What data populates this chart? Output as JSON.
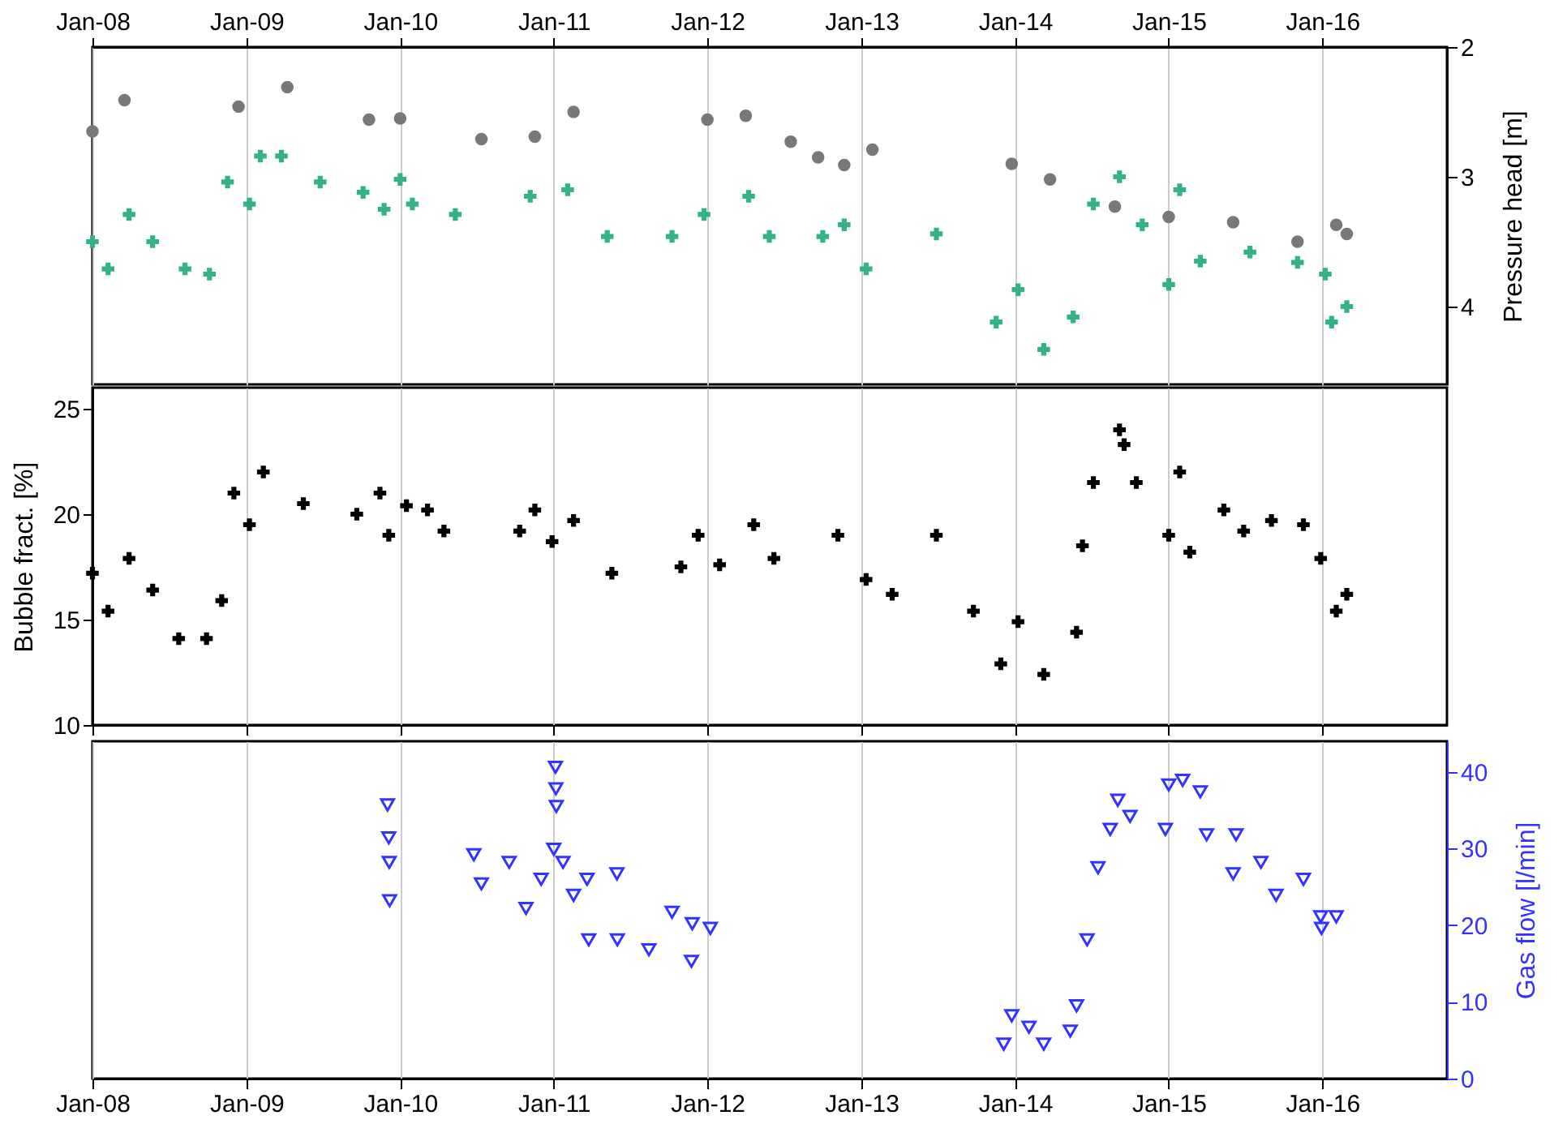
{
  "chart_data": [
    {
      "type": "scatter",
      "y2label": "Pressure head [m]",
      "xlim": [
        "2008-01-01",
        "2016-10-23"
      ],
      "xticks": [
        {
          "value": "2008-01-01",
          "label": "Jan-08"
        },
        {
          "value": "2009-01-01",
          "label": "Jan-09"
        },
        {
          "value": "2010-01-01",
          "label": "Jan-10"
        },
        {
          "value": "2011-01-01",
          "label": "Jan-11"
        },
        {
          "value": "2012-01-01",
          "label": "Jan-12"
        },
        {
          "value": "2013-01-01",
          "label": "Jan-13"
        },
        {
          "value": "2014-01-01",
          "label": "Jan-14"
        },
        {
          "value": "2015-01-01",
          "label": "Jan-15"
        },
        {
          "value": "2016-01-01",
          "label": "Jan-16"
        }
      ],
      "y2lim": [
        4.6,
        2
      ],
      "y2ticks": [
        2,
        3,
        4
      ],
      "grid": "x",
      "series": [
        {
          "color": "#787878",
          "axis": "y2",
          "marker": "circle",
          "x": [
            "2008-01-01",
            "2008-03-17",
            "2008-12-13",
            "2009-04-08",
            "2009-10-19",
            "2010-01-01",
            "2010-07-13",
            "2010-11-17",
            "2011-02-17",
            "2012-01-01",
            "2012-04-01",
            "2012-07-17",
            "2012-09-20",
            "2012-11-21",
            "2013-01-27",
            "2013-12-24",
            "2014-03-25",
            "2014-08-26",
            "2015-01-01",
            "2015-06-03",
            "2015-11-03",
            "2016-02-03",
            "2016-02-28"
          ],
          "values": [
            2.65,
            2.41,
            2.46,
            2.31,
            2.56,
            2.55,
            2.71,
            2.69,
            2.5,
            2.56,
            2.53,
            2.73,
            2.85,
            2.91,
            2.79,
            2.9,
            3.02,
            3.23,
            3.31,
            3.35,
            3.5,
            3.37,
            3.44
          ]
        },
        {
          "color": "#33b383",
          "axis": "y2",
          "marker": "cross",
          "x": [
            "2008-01-01",
            "2008-02-07",
            "2008-03-28",
            "2008-05-23",
            "2008-08-08",
            "2008-10-05",
            "2008-11-17",
            "2009-01-08",
            "2009-02-03",
            "2009-03-25",
            "2009-06-25",
            "2009-10-05",
            "2009-11-24",
            "2010-01-01",
            "2010-01-30",
            "2010-05-12",
            "2010-11-06",
            "2011-02-03",
            "2011-05-08",
            "2011-10-09",
            "2011-12-24",
            "2012-04-08",
            "2012-05-27",
            "2012-10-01",
            "2012-11-21",
            "2013-01-12",
            "2013-06-28",
            "2013-11-17",
            "2014-01-08",
            "2014-03-10",
            "2014-05-19",
            "2014-07-06",
            "2014-09-06",
            "2014-10-30",
            "2015-01-01",
            "2015-01-27",
            "2015-03-17",
            "2015-07-13",
            "2015-11-03",
            "2016-01-08",
            "2016-01-23",
            "2016-02-28"
          ],
          "values": [
            3.5,
            3.71,
            3.29,
            3.5,
            3.71,
            3.75,
            3.04,
            3.21,
            2.84,
            2.84,
            3.04,
            3.12,
            3.25,
            3.02,
            3.21,
            3.29,
            3.15,
            3.1,
            3.46,
            3.46,
            3.29,
            3.15,
            3.46,
            3.46,
            3.37,
            3.71,
            3.44,
            4.12,
            3.87,
            4.33,
            4.08,
            3.21,
            3.0,
            3.37,
            3.83,
            3.1,
            3.65,
            3.58,
            3.66,
            3.75,
            4.12,
            4.0
          ]
        }
      ]
    },
    {
      "type": "scatter",
      "ylabel": "Bubble fract. [%]",
      "xlim": [
        "2008-01-01",
        "2016-10-23"
      ],
      "xticks": [
        {
          "value": "2008-01-01",
          "label": null
        },
        {
          "value": "2009-01-01",
          "label": null
        },
        {
          "value": "2010-01-01",
          "label": null
        },
        {
          "value": "2011-01-01",
          "label": null
        },
        {
          "value": "2012-01-01",
          "label": null
        },
        {
          "value": "2013-01-01",
          "label": null
        },
        {
          "value": "2014-01-01",
          "label": null
        },
        {
          "value": "2015-01-01",
          "label": null
        },
        {
          "value": "2016-01-01",
          "label": null
        }
      ],
      "ylim": [
        10,
        26
      ],
      "yticks": [
        10,
        15,
        20,
        25
      ],
      "grid": "x",
      "tick_labels": "y",
      "series": [
        {
          "color": "#000000",
          "marker": "cross",
          "x": [
            "2008-01-01",
            "2008-02-07",
            "2008-03-28",
            "2008-05-23",
            "2008-07-24",
            "2008-09-28",
            "2008-11-03",
            "2008-12-02",
            "2009-01-08",
            "2009-02-10",
            "2009-05-16",
            "2009-09-20",
            "2009-11-14",
            "2009-12-05",
            "2010-01-16",
            "2010-03-07",
            "2010-04-15",
            "2010-10-12",
            "2010-11-17",
            "2010-12-28",
            "2011-02-17",
            "2011-05-19",
            "2011-10-30",
            "2011-12-10",
            "2012-01-30",
            "2012-04-20",
            "2012-06-07",
            "2012-11-06",
            "2013-01-12",
            "2013-03-15",
            "2013-06-28",
            "2013-09-24",
            "2013-11-28",
            "2014-01-08",
            "2014-03-10",
            "2014-05-27",
            "2014-06-10",
            "2014-07-06",
            "2014-09-06",
            "2014-09-17",
            "2014-10-16",
            "2015-01-01",
            "2015-01-27",
            "2015-02-20",
            "2015-05-12",
            "2015-06-28",
            "2015-09-02",
            "2015-11-17",
            "2015-12-28",
            "2016-02-03",
            "2016-02-28"
          ],
          "values": [
            17.2,
            15.4,
            17.9,
            16.4,
            14.1,
            14.1,
            15.9,
            21.0,
            19.5,
            22.0,
            20.5,
            20.0,
            21.0,
            19.0,
            20.4,
            20.2,
            19.2,
            19.2,
            20.2,
            18.7,
            19.7,
            17.2,
            17.5,
            19.0,
            17.6,
            19.5,
            17.9,
            19.0,
            16.9,
            16.2,
            19.0,
            15.4,
            12.9,
            14.9,
            12.4,
            14.4,
            18.5,
            21.5,
            24.0,
            23.3,
            21.5,
            19.0,
            22.0,
            18.2,
            20.2,
            19.2,
            19.7,
            19.5,
            17.9,
            15.4,
            16.2
          ]
        }
      ]
    },
    {
      "type": "scatter",
      "y2label": "Gas flow [l/min]",
      "xlim": [
        "2008-01-01",
        "2016-10-23"
      ],
      "xticks": [
        {
          "value": "2008-01-01",
          "label": "Jan-08"
        },
        {
          "value": "2009-01-01",
          "label": "Jan-09"
        },
        {
          "value": "2010-01-01",
          "label": "Jan-10"
        },
        {
          "value": "2011-01-01",
          "label": "Jan-11"
        },
        {
          "value": "2012-01-01",
          "label": "Jan-12"
        },
        {
          "value": "2013-01-01",
          "label": "Jan-13"
        },
        {
          "value": "2014-01-01",
          "label": "Jan-14"
        },
        {
          "value": "2015-01-01",
          "label": "Jan-15"
        },
        {
          "value": "2016-01-01",
          "label": "Jan-16"
        }
      ],
      "y2lim": [
        0,
        44
      ],
      "y2ticks": [
        0,
        10,
        20,
        30,
        40
      ],
      "grid": "x",
      "series": [
        {
          "color": "#3333ff",
          "axis": "y2",
          "marker": "triangle",
          "x": [
            "2009-12-02",
            "2009-12-05",
            "2009-12-06",
            "2009-12-07",
            "2010-06-25",
            "2010-07-13",
            "2010-09-17",
            "2010-10-27",
            "2010-12-02",
            "2011-01-01",
            "2011-01-05",
            "2011-01-06",
            "2011-01-07",
            "2011-01-23",
            "2011-02-17",
            "2011-03-21",
            "2011-03-25",
            "2011-05-31",
            "2011-06-01",
            "2011-08-15",
            "2011-10-09",
            "2011-11-24",
            "2011-11-26",
            "2012-01-08",
            "2013-12-05",
            "2013-12-24",
            "2014-02-03",
            "2014-03-10",
            "2014-05-12",
            "2014-05-27",
            "2014-06-21",
            "2014-07-17",
            "2014-08-15",
            "2014-09-02",
            "2014-10-01",
            "2014-12-24",
            "2015-01-01",
            "2015-02-03",
            "2015-03-17",
            "2015-04-01",
            "2015-06-03",
            "2015-06-10",
            "2015-08-08",
            "2015-09-13",
            "2015-11-17",
            "2015-12-28",
            "2015-12-30",
            "2016-02-03"
          ],
          "values": [
            35.7,
            31.4,
            28.2,
            23.2,
            29.2,
            25.4,
            28.2,
            22.2,
            26.0,
            29.9,
            40.6,
            37.8,
            35.5,
            28.2,
            23.9,
            26.0,
            18.1,
            26.7,
            18.1,
            16.8,
            21.7,
            15.3,
            20.2,
            19.6,
            4.5,
            8.2,
            6.7,
            4.5,
            6.2,
            9.5,
            18.1,
            27.5,
            32.5,
            36.3,
            34.2,
            32.5,
            38.3,
            38.9,
            37.4,
            31.8,
            26.7,
            31.8,
            28.2,
            23.9,
            26.0,
            21.1,
            19.6,
            21.1
          ]
        }
      ]
    }
  ]
}
